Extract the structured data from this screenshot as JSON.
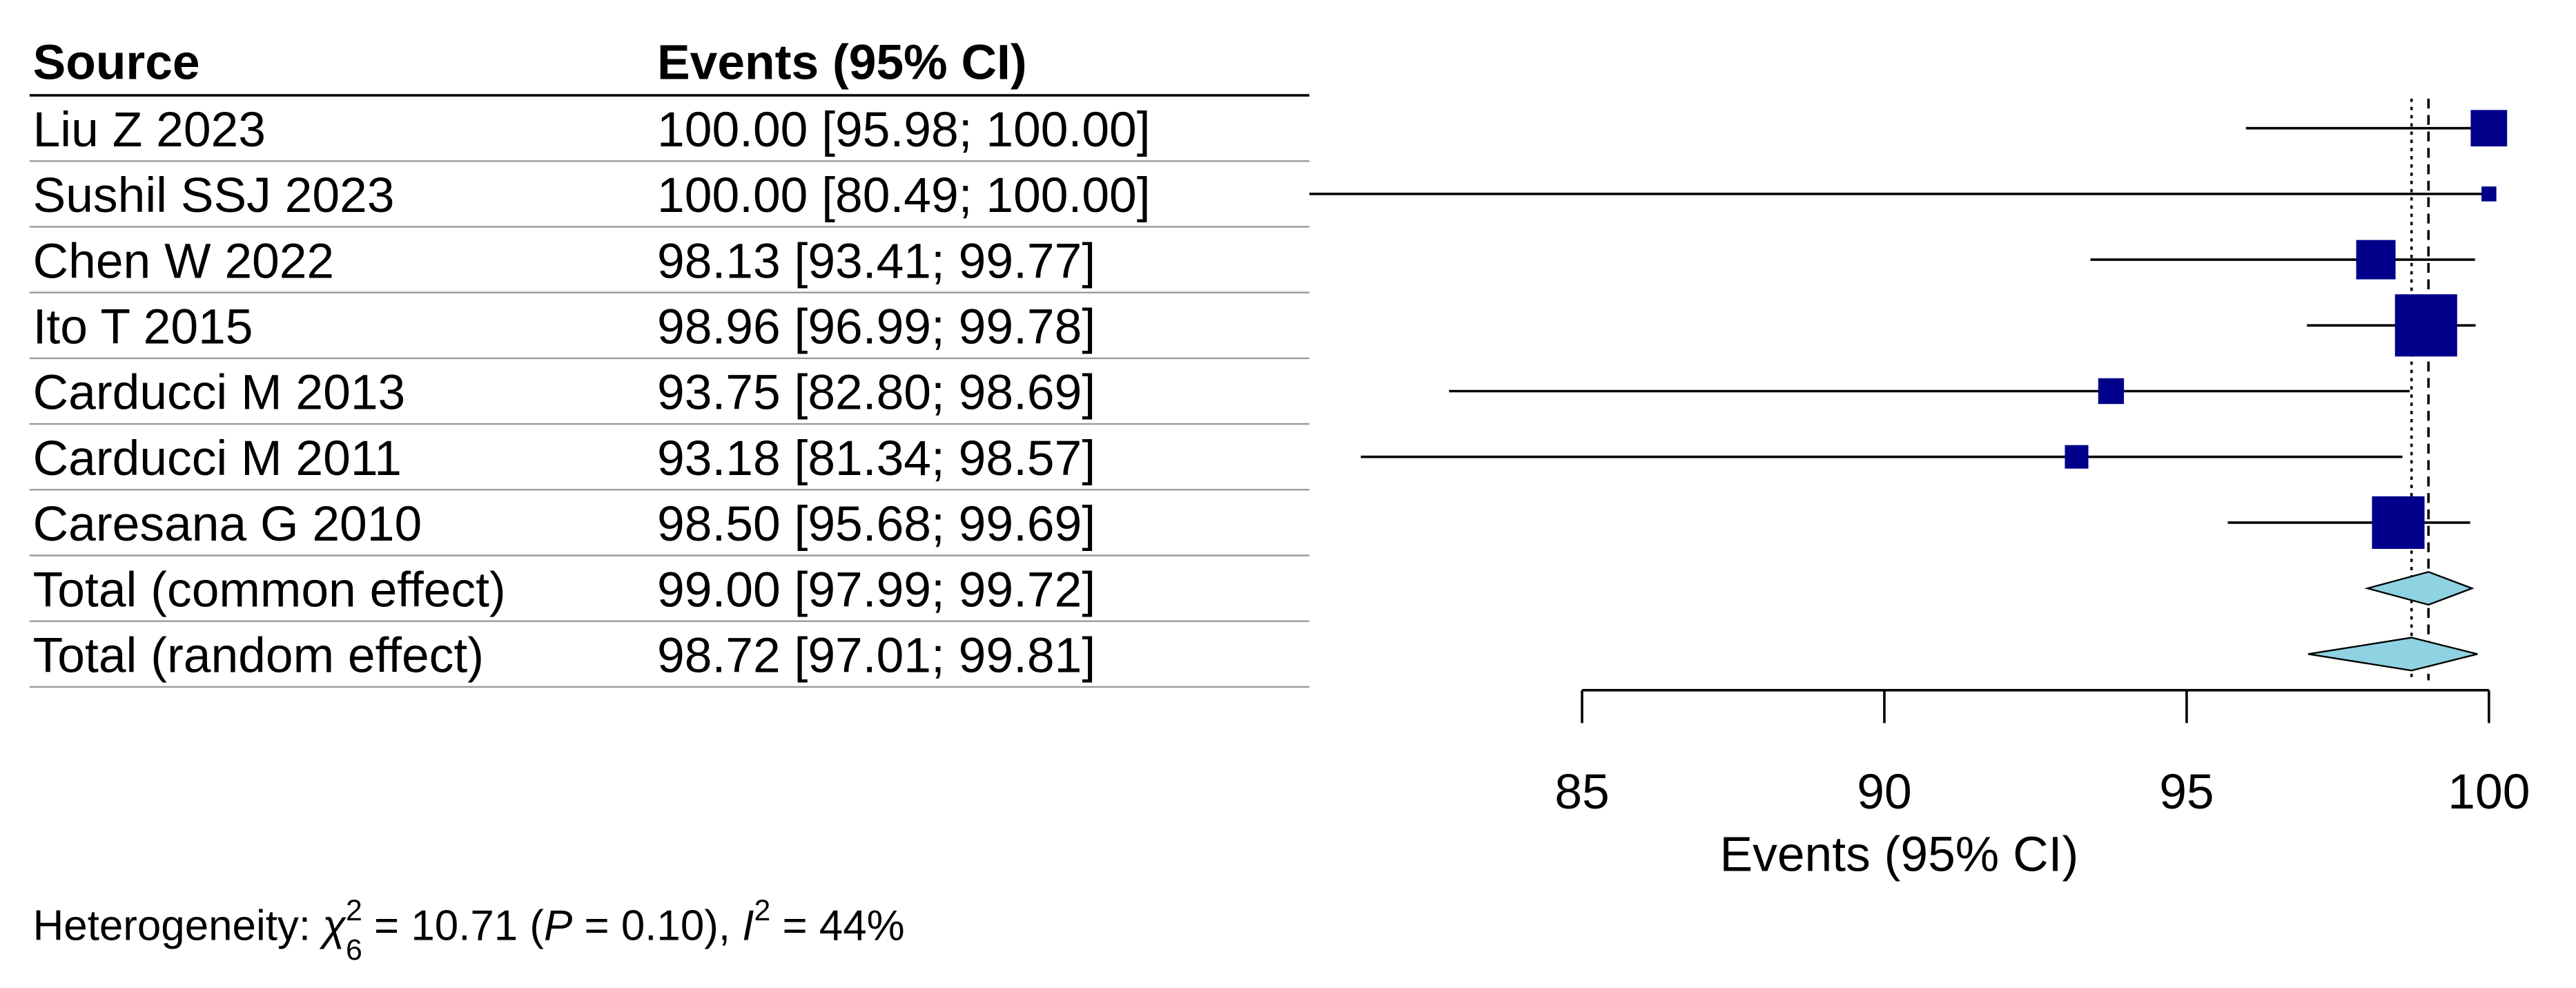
{
  "chart_data": {
    "type": "forest",
    "columns": [
      "Source",
      "Events (95% CI)"
    ],
    "rows": [
      {
        "source": "Liu Z 2023",
        "ci_label": "100.00 [95.98; 100.00]",
        "estimate": 100.0,
        "lower": 95.98,
        "upper": 100.0,
        "weight": 12
      },
      {
        "source": "Sushil SSJ 2023",
        "ci_label": "100.00 [80.49; 100.00]",
        "estimate": 100.0,
        "lower": 80.49,
        "upper": 100.0,
        "weight": 2
      },
      {
        "source": "Chen W 2022",
        "ci_label": "98.13 [93.41;  99.77]",
        "estimate": 98.13,
        "lower": 93.41,
        "upper": 99.77,
        "weight": 14
      },
      {
        "source": "Ito T 2015",
        "ci_label": "98.96 [96.99;  99.78]",
        "estimate": 98.96,
        "lower": 96.99,
        "upper": 99.78,
        "weight": 35
      },
      {
        "source": "Carducci M 2013",
        "ci_label": "93.75 [82.80;  98.69]",
        "estimate": 93.75,
        "lower": 82.8,
        "upper": 98.69,
        "weight": 6
      },
      {
        "source": "Carducci M 2011",
        "ci_label": "93.18 [81.34;  98.57]",
        "estimate": 93.18,
        "lower": 81.34,
        "upper": 98.57,
        "weight": 5
      },
      {
        "source": "Caresana G 2010",
        "ci_label": "98.50 [95.68;  99.69]",
        "estimate": 98.5,
        "lower": 95.68,
        "upper": 99.69,
        "weight": 25
      }
    ],
    "totals": [
      {
        "source": "Total (common effect)",
        "ci_label": "99.00 [97.99;  99.72]",
        "estimate": 99.0,
        "lower": 97.99,
        "upper": 99.72,
        "line": "dashed"
      },
      {
        "source": "Total (random effect)",
        "ci_label": "98.72 [97.01;  99.81]",
        "estimate": 98.72,
        "lower": 97.01,
        "upper": 99.81,
        "line": "dotted"
      }
    ],
    "box_color": "#00008b",
    "diamond_color": "#8fd3e3",
    "xlabel": "Events (95% CI)",
    "xlim": [
      85,
      100
    ],
    "xticks": [
      85,
      90,
      95,
      100
    ],
    "heterogeneity": {
      "prefix": "Heterogeneity: ",
      "chi": "χ",
      "chi_sup": "2",
      "chi_sub": "6",
      "chi_value": " = 10.71 (",
      "p": "P",
      "p_value": " = 0.10), ",
      "i": "I",
      "i_sup": "2",
      "i_value": " = 44%"
    }
  }
}
